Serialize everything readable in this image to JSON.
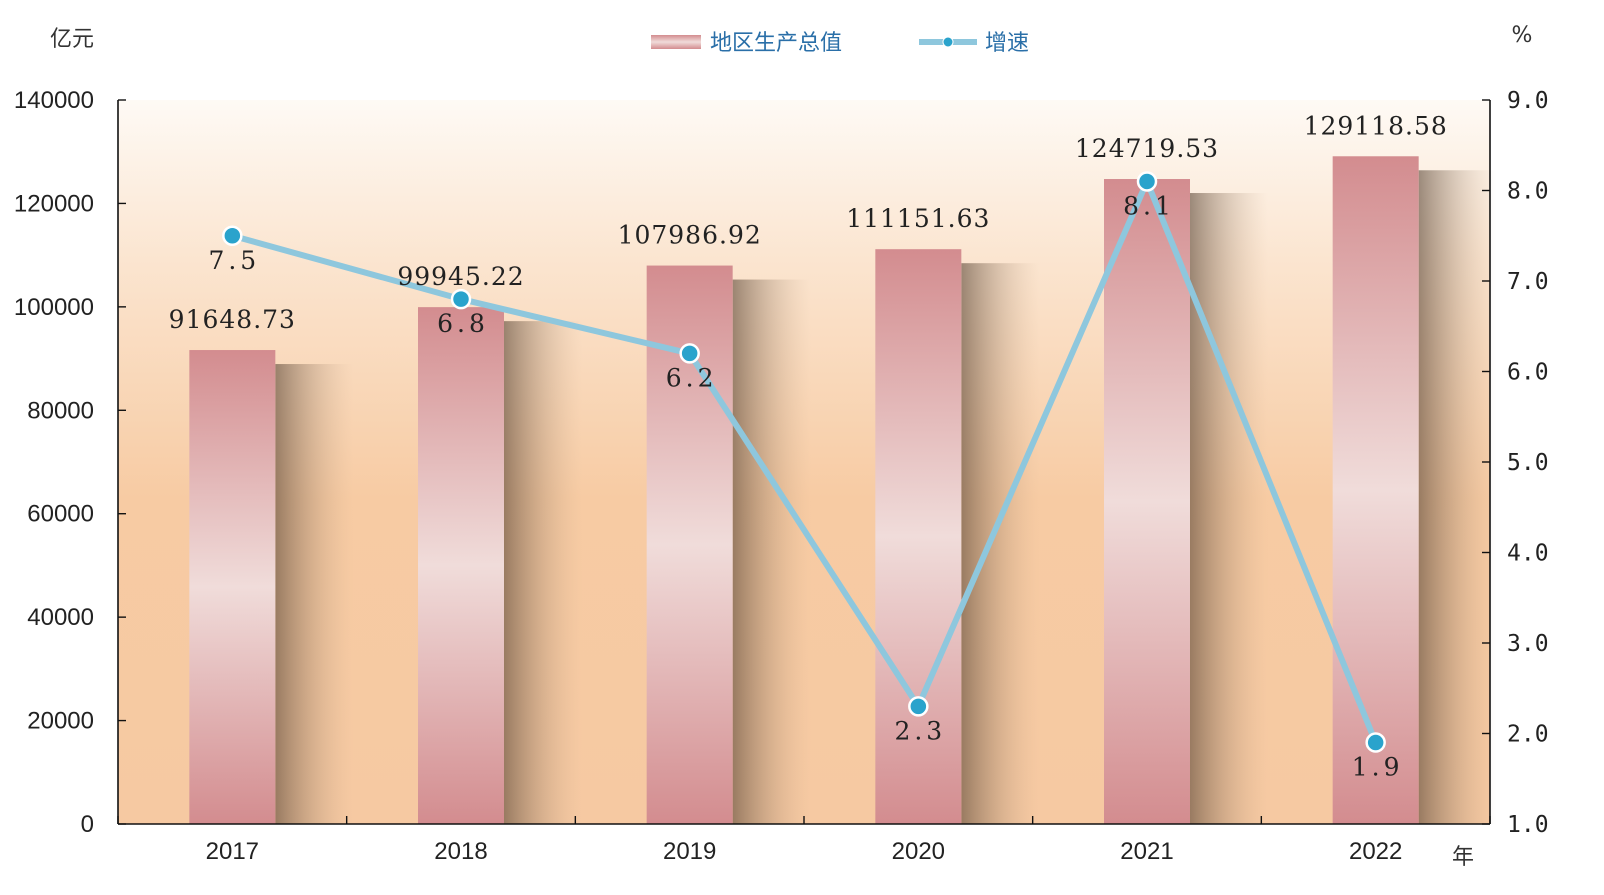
{
  "chart_data": {
    "type": "bar",
    "categories": [
      "2017",
      "2018",
      "2019",
      "2020",
      "2021",
      "2022"
    ],
    "series": [
      {
        "name": "地区生产总值",
        "type": "bar",
        "axis": "left",
        "values": [
          91648.73,
          99945.22,
          107986.92,
          111151.63,
          124719.53,
          129118.58
        ],
        "labels": [
          "91648.73",
          "99945.22",
          "107986.92",
          "111151.63",
          "124719.53",
          "129118.58"
        ],
        "color": "#d38c8f"
      },
      {
        "name": "增速",
        "type": "line",
        "axis": "right",
        "values": [
          7.5,
          6.8,
          6.2,
          2.3,
          8.1,
          1.9
        ],
        "labels": [
          "7.5",
          "6.8",
          "6.2",
          "2.3",
          "8.1",
          "1.9"
        ],
        "color": "#8ec7dd",
        "marker_color": "#2aa3cc"
      }
    ],
    "y_left": {
      "unit": "亿元",
      "range": [
        0,
        140000
      ],
      "ticks": [
        "0",
        "20000",
        "40000",
        "60000",
        "80000",
        "100000",
        "120000",
        "140000"
      ]
    },
    "y_right": {
      "unit": "%",
      "range": [
        1.0,
        9.0
      ],
      "ticks": [
        "1.0",
        "2.0",
        "3.0",
        "4.0",
        "5.0",
        "6.0",
        "7.0",
        "8.0",
        "9.0"
      ]
    },
    "x_unit": "年",
    "legend_position": "top-center",
    "grid": false,
    "background_color": "#f6c9a2"
  }
}
